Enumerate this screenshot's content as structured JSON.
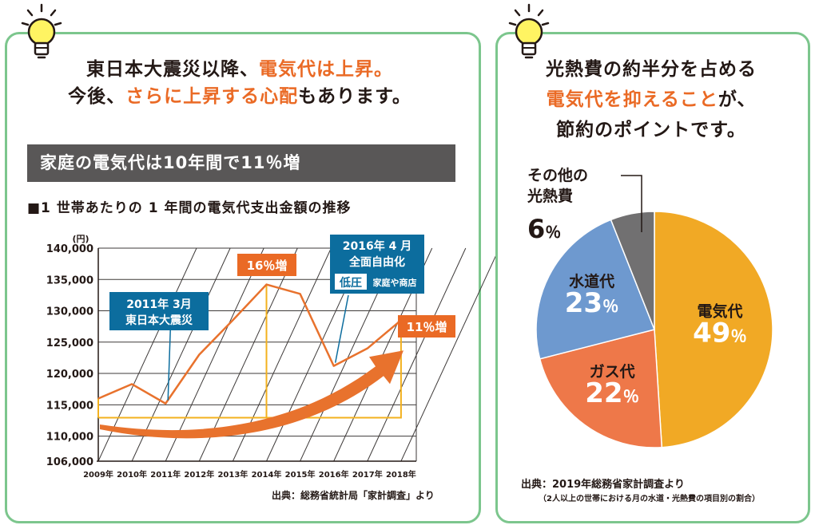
{
  "left": {
    "headline_line1_a": "東日本大震災以降、",
    "headline_line1_b": "電気代は上昇。",
    "headline_line2_a": "今後、",
    "headline_line2_b": "さらに上昇する心配",
    "headline_line2_c": "もあります。",
    "subtitle": "家庭の電気代は10年間で11％増",
    "chart_title": "■1 世帯あたりの 1 年間の電気代支出金額の推移",
    "source": "出典：総務省統計局「家計調査」より"
  },
  "right": {
    "headline_line1": "光熱費の約半分を占める",
    "headline_line2_a": "電気代を抑えること",
    "headline_line2_b": "が、",
    "headline_line3": "節約のポイントです。",
    "source": "出典：2019年総務省家計調査より",
    "source_note": "（2人以上の世帯における月の水道・光熱費の項目別の割合）"
  },
  "colors": {
    "panel_border": "#7cc68d",
    "accent_orange": "#ea6a25",
    "line_orange": "#e8722d",
    "box_yellow": "#f3b11e",
    "callout_blue": "#0c6d9e",
    "gray_bar": "#595757",
    "pie_electric": "#f1a925",
    "pie_gas": "#ee7849",
    "pie_water": "#6e99cf",
    "pie_other": "#717071"
  },
  "chart_data": [
    {
      "type": "line",
      "unit_label": "(円)",
      "categories": [
        "2009年",
        "2010年",
        "2011年",
        "2012年",
        "2013年",
        "2014年",
        "2015年",
        "2016年",
        "2017年",
        "2018年"
      ],
      "values": [
        116000,
        118300,
        115200,
        123000,
        128500,
        134200,
        132700,
        121200,
        124000,
        128500
      ],
      "ylim": [
        106000,
        140000
      ],
      "yticks": [
        106000,
        110000,
        115000,
        120000,
        125000,
        130000,
        135000,
        140000
      ],
      "ytick_labels": [
        "106,000",
        "110,000",
        "115,000",
        "120,000",
        "125,000",
        "130,000",
        "135,000",
        "140,000"
      ],
      "grid": true,
      "annotations": {
        "quake_line1": "2011年 3月",
        "quake_line2": "東日本大震災",
        "peak_label": "16％増",
        "dereg_line1": "2016年 4 月",
        "dereg_line2": "全面自由化",
        "dereg_tag": "低圧",
        "dereg_tag_detail": "家庭や商店",
        "end_label": "11％増"
      }
    },
    {
      "type": "pie",
      "slices": [
        {
          "label": "電気代",
          "value": 49,
          "pct": "49",
          "color": "#f1a925"
        },
        {
          "label": "ガス代",
          "value": 22,
          "pct": "22",
          "color": "#ee7849"
        },
        {
          "label": "水道代",
          "value": 23,
          "pct": "23",
          "color": "#6e99cf"
        },
        {
          "label": "その他の\n光熱費",
          "label_line1": "その他の",
          "label_line2": "光熱費",
          "value": 6,
          "pct": "6",
          "color": "#717071"
        }
      ],
      "percent_sign": "％"
    }
  ]
}
